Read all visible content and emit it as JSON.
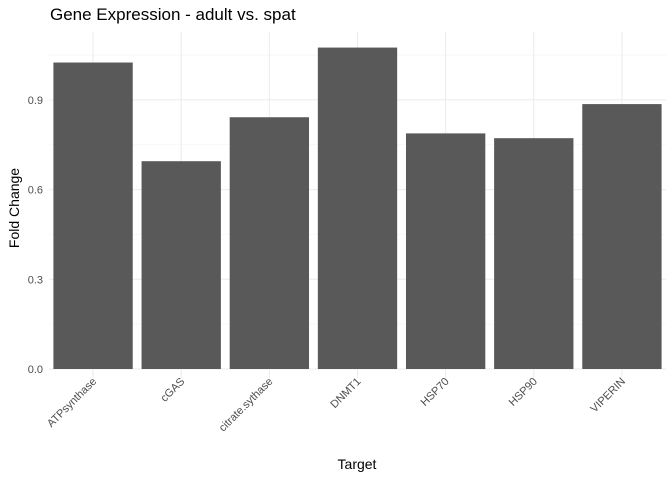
{
  "chart_data": {
    "type": "bar",
    "title": "Gene Expression - adult vs. spat",
    "xlabel": "Target",
    "ylabel": "Fold Change",
    "categories": [
      "ATPsynthase",
      "cGAS",
      "citrate.sythase",
      "DNMT1",
      "HSP70",
      "HSP90",
      "VIPERIN"
    ],
    "values": [
      1.025,
      0.695,
      0.842,
      1.075,
      0.788,
      0.772,
      0.886
    ],
    "ylim": [
      0,
      1.13
    ],
    "yticks": [
      0.0,
      0.3,
      0.6,
      0.9
    ],
    "ytick_labels": [
      "0.0",
      "0.3",
      "0.6",
      "0.9"
    ],
    "grid": true,
    "bar_color": "#595959",
    "grid_color": "#ebebeb"
  }
}
